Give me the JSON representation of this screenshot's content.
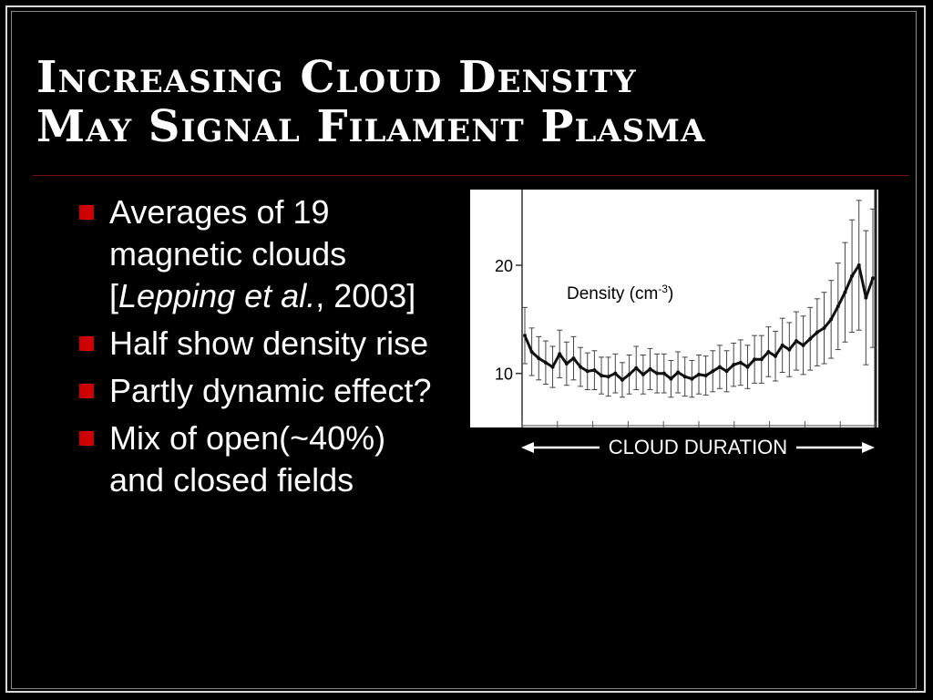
{
  "slide": {
    "title_line1": "Increasing Cloud Density",
    "title_line2": "May Signal Filament Plasma",
    "bullets": [
      {
        "pre": "Averages of 19 magnetic clouds [",
        "italic": "Lepping et al.",
        "post": ", 2003]"
      },
      {
        "pre": "Half show density rise",
        "italic": "",
        "post": ""
      },
      {
        "pre": "Partly dynamic effect?",
        "italic": "",
        "post": ""
      },
      {
        "pre": "Mix of open(~40%) and closed fields",
        "italic": "",
        "post": ""
      }
    ],
    "bullet_color": "#cc0000"
  },
  "chart_data": {
    "type": "line",
    "ylabel": "Density (cm-3)",
    "ylabel_text": "Density (cm",
    "ylabel_sup": "-3",
    "ylabel_close": ")",
    "xlabel": "CLOUD DURATION",
    "yticks": [
      10,
      20
    ],
    "ylim": [
      5,
      27
    ],
    "xlim": [
      0,
      100
    ],
    "series": [
      {
        "x": [
          0,
          2,
          4,
          6,
          8,
          10,
          12,
          14,
          16,
          18,
          20,
          22,
          24,
          26,
          28,
          30,
          32,
          34,
          36,
          38,
          40,
          42,
          44,
          46,
          48,
          50,
          52,
          54,
          56,
          58,
          60,
          62,
          64,
          66,
          68,
          70,
          72,
          74,
          76,
          78,
          80,
          82,
          84,
          86,
          88,
          90,
          92,
          94,
          96,
          98,
          100
        ],
        "values": [
          13.5,
          12.0,
          11.4,
          11.0,
          10.6,
          11.8,
          10.9,
          11.4,
          10.6,
          10.2,
          10.3,
          9.8,
          9.7,
          10.0,
          9.4,
          9.9,
          10.5,
          9.9,
          10.4,
          10.0,
          10.0,
          9.5,
          10.1,
          9.7,
          9.5,
          9.9,
          9.8,
          10.2,
          10.6,
          10.2,
          10.8,
          11.0,
          10.6,
          11.3,
          11.3,
          12.0,
          11.6,
          12.6,
          12.2,
          13.0,
          12.6,
          13.2,
          13.8,
          14.2,
          15.0,
          16.2,
          17.5,
          19.0,
          20.0,
          17.0,
          18.8
        ],
        "errors": [
          2.6,
          2.2,
          2.0,
          2.0,
          1.9,
          2.2,
          2.0,
          2.0,
          1.8,
          1.7,
          1.8,
          1.7,
          1.8,
          1.8,
          1.6,
          1.8,
          2.0,
          1.8,
          1.9,
          1.8,
          1.8,
          1.7,
          1.9,
          1.8,
          1.7,
          1.8,
          1.8,
          1.9,
          2.0,
          1.9,
          2.0,
          2.1,
          2.0,
          2.2,
          2.2,
          2.3,
          2.3,
          2.5,
          2.5,
          2.7,
          2.7,
          2.9,
          3.1,
          3.3,
          3.6,
          4.0,
          4.6,
          5.2,
          6.0,
          6.2,
          6.4
        ]
      }
    ]
  }
}
